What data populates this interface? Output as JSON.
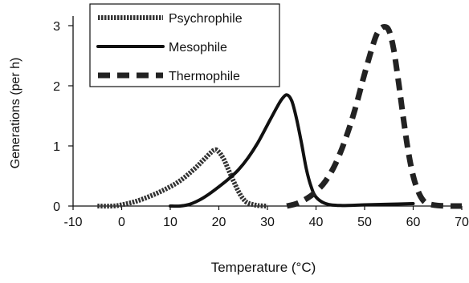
{
  "chart_data": {
    "type": "line",
    "title": "",
    "xlabel": "Temperature (°C)",
    "ylabel": "Generations (per h)",
    "xlim": [
      -10,
      70
    ],
    "ylim": [
      0,
      3
    ],
    "xticks": [
      -10,
      0,
      10,
      20,
      30,
      40,
      50,
      60,
      70
    ],
    "yticks": [
      0,
      1,
      2,
      3
    ],
    "grid": false,
    "legend": "top-left",
    "series": [
      {
        "name": "Psychrophile",
        "style": "dotted",
        "color": "#333333",
        "x": [
          -5,
          -2,
          0,
          3,
          6,
          9,
          12,
          15,
          17,
          19,
          20,
          21,
          22,
          23,
          24,
          25,
          26,
          28,
          30
        ],
        "y": [
          0,
          0,
          0.02,
          0.08,
          0.17,
          0.28,
          0.42,
          0.62,
          0.78,
          0.93,
          0.9,
          0.78,
          0.6,
          0.42,
          0.25,
          0.12,
          0.05,
          0.01,
          0
        ]
      },
      {
        "name": "Mesophile",
        "style": "solid",
        "color": "#111111",
        "x": [
          10,
          12,
          14,
          16,
          18,
          20,
          22,
          24,
          26,
          28,
          30,
          32,
          33,
          34,
          35,
          36,
          37,
          38,
          39,
          40,
          42,
          45,
          50,
          55,
          60
        ],
        "y": [
          0,
          0,
          0.03,
          0.1,
          0.2,
          0.32,
          0.45,
          0.6,
          0.8,
          1.05,
          1.35,
          1.65,
          1.78,
          1.85,
          1.75,
          1.45,
          1.05,
          0.62,
          0.32,
          0.15,
          0.04,
          0.01,
          0.02,
          0.03,
          0.04
        ]
      },
      {
        "name": "Thermophile",
        "style": "dashed",
        "color": "#222222",
        "x": [
          34,
          36,
          38,
          40,
          42,
          44,
          46,
          48,
          50,
          52,
          53,
          54,
          55,
          56,
          57,
          58,
          59,
          60,
          61,
          62,
          63,
          65,
          68,
          70
        ],
        "y": [
          0,
          0.04,
          0.12,
          0.24,
          0.42,
          0.7,
          1.1,
          1.6,
          2.2,
          2.75,
          2.92,
          2.98,
          2.92,
          2.6,
          2.05,
          1.45,
          0.9,
          0.5,
          0.25,
          0.1,
          0.04,
          0.01,
          0,
          0
        ]
      }
    ]
  }
}
